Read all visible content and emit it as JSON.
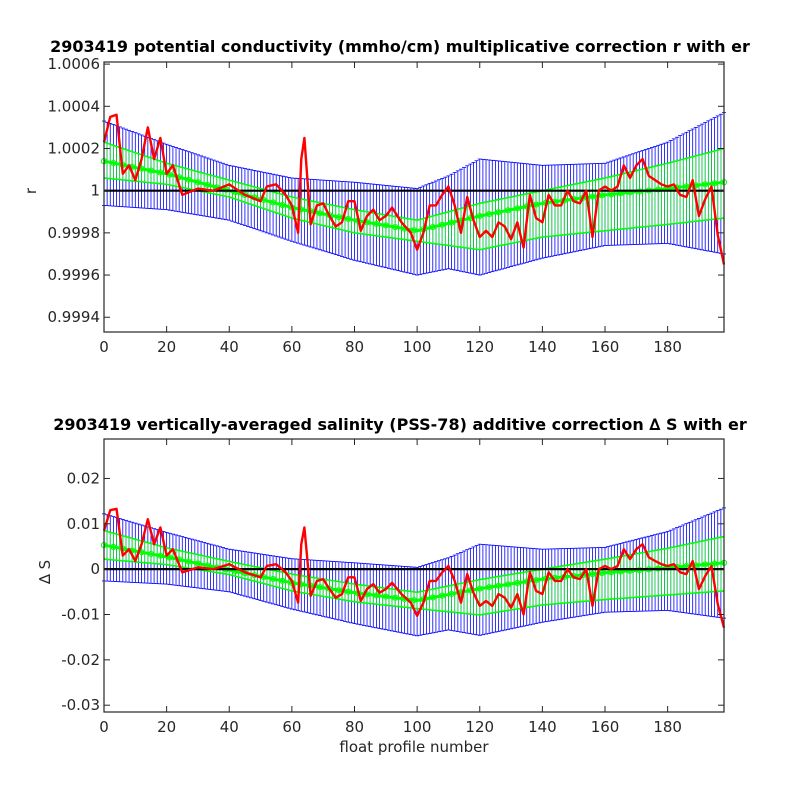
{
  "colors": {
    "errorbars": "#0000ff",
    "model_band": "#00ff00",
    "model_mean": "#00ff00",
    "float_correction": "#ff0000",
    "zero_line": "#000000",
    "axes": "#262626"
  },
  "chart_data": [
    {
      "type": "line",
      "title": "2903419 potential conductivity (mmho/cm) multiplicative correction r with er",
      "xlabel": "",
      "ylabel": "r",
      "xlim": [
        0,
        198
      ],
      "ylim": [
        0.99933,
        1.00061
      ],
      "xticks": [
        0,
        20,
        40,
        60,
        80,
        100,
        120,
        140,
        160,
        180
      ],
      "yticks": [
        0.9994,
        0.9996,
        0.9998,
        1,
        1.0002,
        1.0004,
        1.0006
      ],
      "ytick_labels": [
        "0.9994",
        "0.9996",
        "0.9998",
        "1",
        "1.0002",
        "1.0004",
        "1.0006"
      ],
      "reference_line": 1,
      "grid": false,
      "legend": "none",
      "series": [
        {
          "role": "model_mean",
          "x": [
            0,
            20,
            40,
            60,
            80,
            100,
            120,
            140,
            160,
            180,
            198
          ],
          "y": [
            1.00014,
            1.00008,
            1.0,
            0.99992,
            0.99986,
            0.99981,
            0.99988,
            0.99994,
            0.99998,
            1.00001,
            1.00004
          ]
        },
        {
          "role": "model_band_upper",
          "x": [
            0,
            20,
            40,
            60,
            80,
            100,
            120,
            140,
            160,
            180,
            198
          ],
          "y": [
            1.00023,
            1.00013,
            1.00005,
            0.99997,
            0.99991,
            0.99986,
            0.99994,
            1.0,
            1.00006,
            1.00013,
            1.0002
          ]
        },
        {
          "role": "model_band_lower",
          "x": [
            0,
            20,
            40,
            60,
            80,
            100,
            120,
            140,
            160,
            180,
            198
          ],
          "y": [
            1.00006,
            1.00003,
            0.99997,
            0.99987,
            0.9998,
            0.99976,
            0.99972,
            0.99978,
            0.99981,
            0.99984,
            0.99987
          ]
        },
        {
          "role": "errorbar_upper",
          "x": [
            0,
            20,
            40,
            60,
            80,
            100,
            110,
            120,
            140,
            160,
            180,
            198
          ],
          "y": [
            1.00033,
            1.00022,
            1.00012,
            1.00006,
            1.00004,
            1.00001,
            1.00007,
            1.00015,
            1.00012,
            1.00013,
            1.00023,
            1.00037
          ]
        },
        {
          "role": "errorbar_lower",
          "x": [
            0,
            20,
            40,
            60,
            80,
            100,
            110,
            120,
            140,
            160,
            180,
            198
          ],
          "y": [
            0.99993,
            0.99991,
            0.99986,
            0.99976,
            0.99967,
            0.9996,
            0.99963,
            0.9996,
            0.99968,
            0.99974,
            0.99975,
            0.9997
          ]
        },
        {
          "role": "float_correction",
          "x": [
            0,
            2,
            4,
            6,
            8,
            10,
            12,
            14,
            16,
            18,
            20,
            22,
            25,
            30,
            35,
            40,
            45,
            50,
            52,
            55,
            58,
            60,
            62,
            63,
            64,
            66,
            68,
            70,
            72,
            74,
            76,
            78,
            80,
            82,
            84,
            86,
            88,
            90,
            92,
            95,
            98,
            100,
            102,
            104,
            106,
            108,
            110,
            112,
            114,
            116,
            118,
            120,
            122,
            124,
            126,
            128,
            130,
            132,
            134,
            136,
            138,
            140,
            142,
            144,
            146,
            148,
            150,
            152,
            154,
            156,
            158,
            160,
            162,
            164,
            166,
            168,
            170,
            172,
            174,
            176,
            178,
            180,
            182,
            184,
            186,
            188,
            190,
            192,
            194,
            196,
            198
          ],
          "y": [
            1.00023,
            1.00035,
            1.00036,
            1.00008,
            1.00012,
            1.00005,
            1.00015,
            1.0003,
            1.00015,
            1.00025,
            1.00008,
            1.00012,
            0.99998,
            1.00001,
            1.0,
            1.00003,
            0.99998,
            0.99995,
            1.00002,
            1.00003,
            0.99998,
            0.99993,
            0.9998,
            1.00015,
            1.00025,
            0.99984,
            0.99993,
            0.99994,
            0.99988,
            0.99983,
            0.99985,
            0.99995,
            0.99995,
            0.99981,
            0.99988,
            0.99991,
            0.99986,
            0.99988,
            0.99992,
            0.99985,
            0.9998,
            0.99972,
            0.9998,
            0.99993,
            0.99993,
            0.99998,
            1.00002,
            0.99993,
            0.9998,
            0.99997,
            0.99986,
            0.99978,
            0.99981,
            0.99978,
            0.99985,
            0.99983,
            0.99977,
            0.99985,
            0.99973,
            0.99998,
            0.99987,
            0.99985,
            0.99998,
            0.99993,
            0.99993,
            1.0,
            0.99995,
            0.99994,
            1.0,
            0.99978,
            1.0,
            1.00002,
            1.0,
            1.00002,
            1.00012,
            1.00006,
            1.00012,
            1.00015,
            1.00007,
            1.00005,
            1.00003,
            1.00002,
            1.00003,
            0.99998,
            0.99997,
            1.00005,
            0.99988,
            0.99996,
            1.00002,
            0.99979,
            0.99965
          ]
        }
      ]
    },
    {
      "type": "line",
      "title": "2903419 vertically-averaged salinity (PSS-78) additive correction ∆ S with er",
      "xlabel": "float profile number",
      "ylabel": "∆ S",
      "xlim": [
        0,
        198
      ],
      "ylim": [
        -0.0315,
        0.0287
      ],
      "xticks": [
        0,
        20,
        40,
        60,
        80,
        100,
        120,
        140,
        160,
        180
      ],
      "yticks": [
        -0.03,
        -0.02,
        -0.01,
        0,
        0.01,
        0.02
      ],
      "ytick_labels": [
        "-0.03",
        "-0.02",
        "-0.01",
        "0",
        "0.01",
        "0.02"
      ],
      "reference_line": 0,
      "grid": false,
      "legend": "none",
      "series": [
        {
          "role": "model_mean",
          "x": [
            0,
            20,
            40,
            60,
            80,
            100,
            120,
            140,
            160,
            180,
            198
          ],
          "y": [
            0.0053,
            0.0027,
            -0.0002,
            -0.003,
            -0.0052,
            -0.0069,
            -0.0043,
            -0.0022,
            -0.0008,
            0.0003,
            0.0014
          ]
        },
        {
          "role": "model_band_upper",
          "x": [
            0,
            20,
            40,
            60,
            80,
            100,
            120,
            140,
            160,
            180,
            198
          ],
          "y": [
            0.0085,
            0.0047,
            0.0017,
            -0.0011,
            -0.0033,
            -0.0051,
            -0.0023,
            0.0,
            0.0022,
            0.0046,
            0.0072
          ]
        },
        {
          "role": "model_band_lower",
          "x": [
            0,
            20,
            40,
            60,
            80,
            100,
            120,
            140,
            160,
            180,
            198
          ],
          "y": [
            0.0022,
            0.001,
            -0.0012,
            -0.0048,
            -0.0072,
            -0.0087,
            -0.0101,
            -0.0079,
            -0.0067,
            -0.0057,
            -0.0048
          ]
        },
        {
          "role": "errorbar_upper",
          "x": [
            0,
            20,
            40,
            60,
            80,
            100,
            110,
            120,
            140,
            160,
            180,
            198
          ],
          "y": [
            0.0122,
            0.0081,
            0.0044,
            0.0023,
            0.0014,
            0.0004,
            0.0025,
            0.0055,
            0.0044,
            0.0048,
            0.0083,
            0.0135
          ]
        },
        {
          "role": "errorbar_lower",
          "x": [
            0,
            20,
            40,
            60,
            80,
            100,
            110,
            120,
            140,
            160,
            180,
            198
          ],
          "y": [
            -0.0026,
            -0.0033,
            -0.005,
            -0.0088,
            -0.012,
            -0.0147,
            -0.0134,
            -0.0146,
            -0.0117,
            -0.0095,
            -0.0091,
            -0.0108
          ]
        },
        {
          "role": "float_correction",
          "x": [
            0,
            2,
            4,
            6,
            8,
            10,
            12,
            14,
            16,
            18,
            20,
            22,
            25,
            30,
            35,
            40,
            45,
            50,
            52,
            55,
            58,
            60,
            62,
            63,
            64,
            66,
            68,
            70,
            72,
            74,
            76,
            78,
            80,
            82,
            84,
            86,
            88,
            90,
            92,
            95,
            98,
            100,
            102,
            104,
            106,
            108,
            110,
            112,
            114,
            116,
            118,
            120,
            122,
            124,
            126,
            128,
            130,
            132,
            134,
            136,
            138,
            140,
            142,
            144,
            146,
            148,
            150,
            152,
            154,
            156,
            158,
            160,
            162,
            164,
            166,
            168,
            170,
            172,
            174,
            176,
            178,
            180,
            182,
            184,
            186,
            188,
            190,
            192,
            194,
            196,
            198
          ],
          "y": [
            0.0085,
            0.013,
            0.0133,
            0.003,
            0.0044,
            0.0018,
            0.0055,
            0.011,
            0.0055,
            0.0092,
            0.003,
            0.0044,
            -0.0007,
            0.0004,
            0.0,
            0.0011,
            -0.0007,
            -0.0018,
            0.0007,
            0.0011,
            -0.0007,
            -0.0026,
            -0.0074,
            0.0055,
            0.0092,
            -0.0059,
            -0.0026,
            -0.0022,
            -0.0044,
            -0.0063,
            -0.0055,
            -0.0018,
            -0.0018,
            -0.007,
            -0.0044,
            -0.0033,
            -0.0052,
            -0.0044,
            -0.003,
            -0.0055,
            -0.0074,
            -0.0103,
            -0.0074,
            -0.0026,
            -0.0026,
            -0.0007,
            0.0007,
            -0.0026,
            -0.0074,
            -0.0011,
            -0.0052,
            -0.0081,
            -0.007,
            -0.0081,
            -0.0055,
            -0.0063,
            -0.0085,
            -0.0055,
            -0.01,
            -0.0007,
            -0.0048,
            -0.0055,
            -0.0007,
            -0.0026,
            -0.0026,
            0.0,
            -0.0018,
            -0.0022,
            0.0,
            -0.0081,
            0.0,
            0.0007,
            0.0,
            0.0007,
            0.0044,
            0.0022,
            0.0044,
            0.0055,
            0.0026,
            0.0018,
            0.0011,
            0.0007,
            0.0011,
            -0.0007,
            -0.0011,
            0.0018,
            -0.0044,
            -0.0015,
            0.0007,
            -0.0077,
            -0.0129
          ]
        }
      ]
    }
  ]
}
